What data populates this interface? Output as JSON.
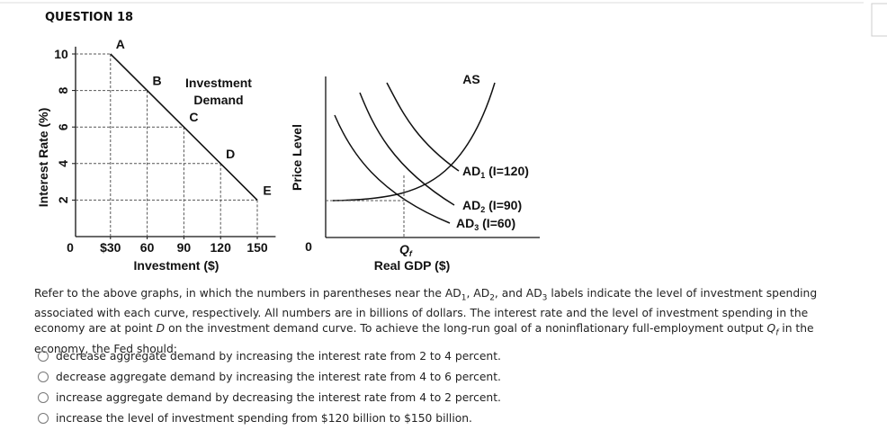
{
  "header": {
    "title": "QUESTION 18"
  },
  "investment_graph": {
    "y_label": "Interest Rate (%)",
    "x_label": "Investment ($)",
    "curve_label": [
      "Investment",
      "Demand"
    ],
    "ylim": [
      0,
      10.6
    ],
    "yticks": [
      10,
      8,
      6,
      4,
      2
    ],
    "xlim": [
      0,
      165
    ],
    "xticks": [
      0,
      {
        "value": 30,
        "label": "$30"
      },
      60,
      90,
      120,
      150
    ],
    "points": [
      {
        "label": "A",
        "x": 30,
        "y": 10
      },
      {
        "label": "B",
        "x": 60,
        "y": 8
      },
      {
        "label": "C",
        "x": 90,
        "y": 6
      },
      {
        "label": "D",
        "x": 120,
        "y": 4
      },
      {
        "label": "E",
        "x": 150,
        "y": 2
      }
    ]
  },
  "ad_as_graph": {
    "y_label": "Price Level",
    "x_label": "Real GDP ($)",
    "origin": "0",
    "as_label": "AS",
    "ad_labels": [
      {
        "base": "AD",
        "sub": "1",
        "rest": " (I=120)"
      },
      {
        "base": "AD",
        "sub": "2",
        "rest": " (I=90)"
      },
      {
        "base": "AD",
        "sub": "3",
        "rest": " (I=60)"
      }
    ],
    "qf": {
      "base": "Q",
      "sub": "f"
    }
  },
  "question": {
    "prompt": [
      [
        {
          "text": "Refer to the above graphs, in which the numbers in parentheses near the AD"
        },
        {
          "text": "1",
          "style": "sub"
        },
        {
          "text": ", AD"
        },
        {
          "text": "2",
          "style": "sub"
        },
        {
          "text": ", and AD"
        },
        {
          "text": "3",
          "style": "sub"
        },
        {
          "text": " labels indicate the level of investment spending"
        }
      ],
      [
        {
          "text": "associated with each curve, respectively. All numbers are in billions of dollars. The interest rate and the level of investment spending in the"
        }
      ],
      [
        {
          "text": "economy are at point "
        },
        {
          "text": "D",
          "style": "italic"
        },
        {
          "text": " on the investment demand curve. To achieve the long-run goal of a noninflationary full-employment output "
        },
        {
          "text": "Q",
          "style": "italic"
        },
        {
          "text": "f",
          "style": "italic-sub"
        },
        {
          "text": " in the"
        }
      ],
      [
        {
          "text": "economy, the Fed should:"
        }
      ]
    ],
    "options": [
      "decrease aggregate demand by increasing the interest rate from 2 to 4 percent.",
      "decrease aggregate demand by increasing the interest rate from 4 to 6 percent.",
      "increase aggregate demand by decreasing the interest rate from 4 to 2 percent.",
      "increase the level of investment spending from $120 billion to $150 billion."
    ]
  }
}
